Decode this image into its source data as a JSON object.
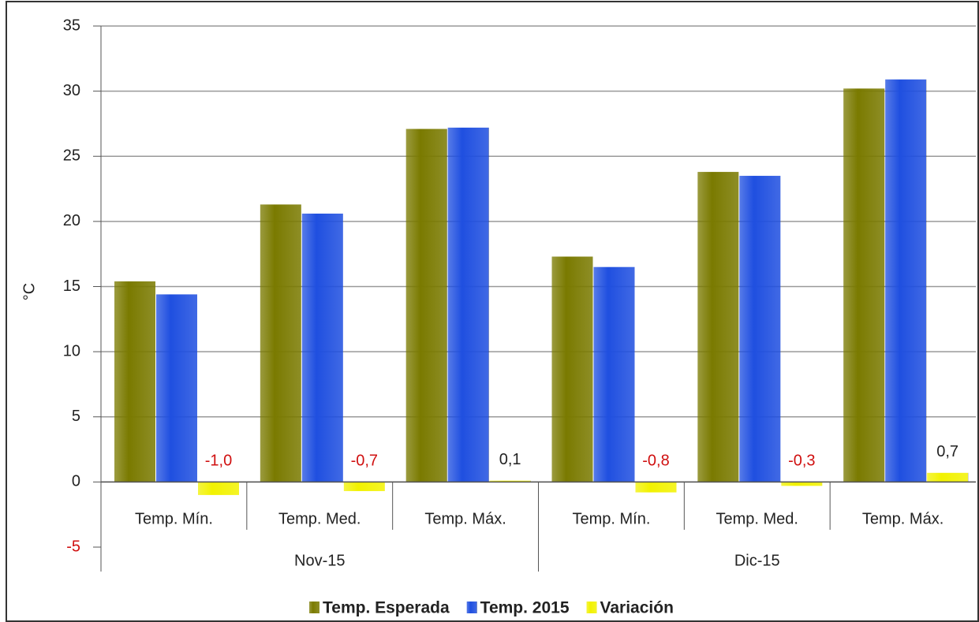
{
  "chart_data": {
    "type": "bar",
    "y_label": "°C",
    "groups": [
      {
        "name": "Nov-15",
        "categories": [
          "Temp. Mín.",
          "Temp. Med.",
          "Temp. Máx."
        ]
      },
      {
        "name": "Dic-15",
        "categories": [
          "Temp. Mín.",
          "Temp. Med.",
          "Temp. Máx."
        ]
      }
    ],
    "series": [
      {
        "name": "Temp. Esperada",
        "color": "#7a7a00",
        "values": [
          15.4,
          21.3,
          27.1,
          17.3,
          23.8,
          30.2
        ]
      },
      {
        "name": "Temp. 2015",
        "color": "#1f4fe0",
        "values": [
          14.4,
          20.6,
          27.2,
          16.5,
          23.5,
          30.9
        ]
      },
      {
        "name": "Variación",
        "color": "#f2f200",
        "values": [
          -1.0,
          -0.7,
          0.1,
          -0.8,
          -0.3,
          0.7
        ],
        "value_labels": [
          "-1,0",
          "-0,7",
          "0,1",
          "-0,8",
          "-0,3",
          "0,7"
        ]
      }
    ],
    "ylim": [
      -5,
      35
    ],
    "yticks": [
      -5,
      0,
      5,
      10,
      15,
      20,
      25,
      30,
      35
    ],
    "grid": true
  }
}
